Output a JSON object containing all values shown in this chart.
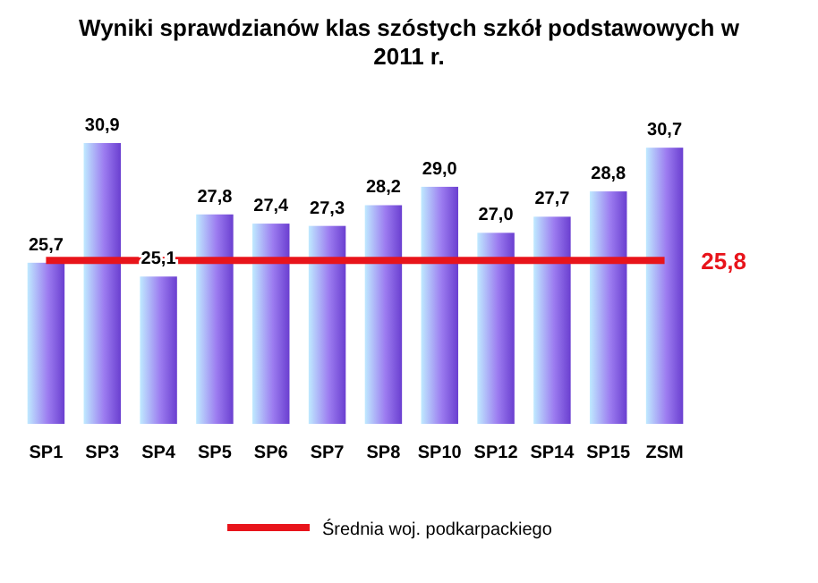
{
  "chart_data": {
    "type": "bar",
    "title": "Wyniki sprawdzianów klas szóstych szkół podstawowych w 2011 r.",
    "categories": [
      "SP1",
      "SP3",
      "SP4",
      "SP5",
      "SP6",
      "SP7",
      "SP8",
      "SP10",
      "SP12",
      "SP14",
      "SP15",
      "ZSM"
    ],
    "series": [
      {
        "color": "#9c7cf0",
        "values": [
          25.7,
          30.9,
          25.1,
          27.8,
          27.4,
          27.3,
          28.2,
          29.0,
          27.0,
          27.7,
          28.8,
          30.7
        ],
        "value_labels": [
          "25,7",
          "30,9",
          "25,1",
          "27,8",
          "27,4",
          "27,3",
          "28,2",
          "29,0",
          "27,0",
          "27,7",
          "28,8",
          "30,7"
        ]
      },
      {
        "type": "line",
        "name": "Średnia woj. podkarpackiego",
        "color": "#e8141b",
        "values": [
          25.8,
          25.8,
          25.8,
          25.8,
          25.8,
          25.8,
          25.8,
          25.8,
          25.8,
          25.8,
          25.8,
          25.8
        ],
        "value_labels": [
          null,
          null,
          null,
          null,
          null,
          null,
          null,
          null,
          null,
          null,
          null,
          "25,8"
        ]
      }
    ],
    "ylim": [
      18.7,
      30.9
    ],
    "tick_labels": "x",
    "legend": "bottom",
    "grid": false
  }
}
